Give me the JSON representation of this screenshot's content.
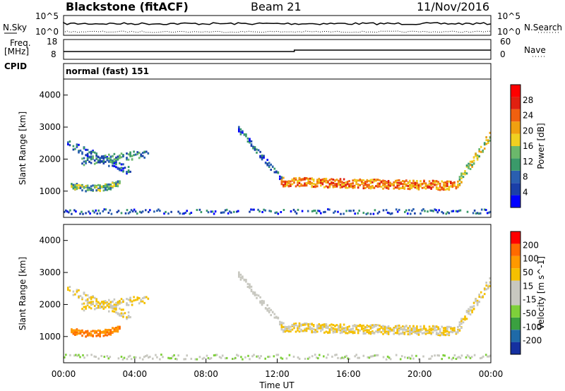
{
  "header": {
    "title": "Blackstone (fitACF)",
    "beam": "Beam 21",
    "date": "11/Nov/2016"
  },
  "labels": {
    "nsky": "N.Sky",
    "nsearch": "N.Search",
    "freq": "Freq.",
    "mhz": "[MHz]",
    "cpid": "CPID",
    "nave": "Nave",
    "sky_hi": "10^5",
    "sky_lo": "10^0",
    "srch_hi": "10^5",
    "srch_lo": "10^0",
    "freq_hi": "18",
    "freq_lo": "8",
    "nave_hi": "60",
    "nave_lo": "0",
    "cpid_value": "normal (fast) 151"
  },
  "colors": {
    "power": [
      "#0000ff",
      "#1a3fa8",
      "#2a5fb0",
      "#3a9a6a",
      "#6bb86b",
      "#f0d020",
      "#f0a010",
      "#f06010",
      "#e02010",
      "#ff0000"
    ],
    "velocity": [
      "#ff0000",
      "#ff6a00",
      "#ff9900",
      "#f5c000",
      "#c8c8c0",
      "#c8c8c0",
      "#7ed03a",
      "#3aa040",
      "#1f6aa8",
      "#1530a0"
    ]
  },
  "chart_data": [
    {
      "type": "heatmap",
      "name": "power-panel",
      "ylabel": "Slant Range [km]",
      "yticks": [
        "1000",
        "2000",
        "3000",
        "4000"
      ],
      "colorbar_label": "Power [dB]",
      "colorbar_ticks": [
        "4",
        "8",
        "12",
        "16",
        "20",
        "24",
        "28"
      ]
    },
    {
      "type": "heatmap",
      "name": "velocity-panel",
      "ylabel": "Slant Range [km]",
      "yticks": [
        "1000",
        "2000",
        "3000",
        "4000"
      ],
      "colorbar_label": "Velocity [m s^-1]",
      "colorbar_ticks": [
        "200",
        "100",
        "50",
        "15",
        "-15",
        "-50",
        "-100",
        "-200"
      ]
    }
  ],
  "xaxis": {
    "ticks": [
      "00:00",
      "04:00",
      "08:00",
      "12:00",
      "16:00",
      "20:00",
      "00:00"
    ],
    "label": "Time UT"
  }
}
